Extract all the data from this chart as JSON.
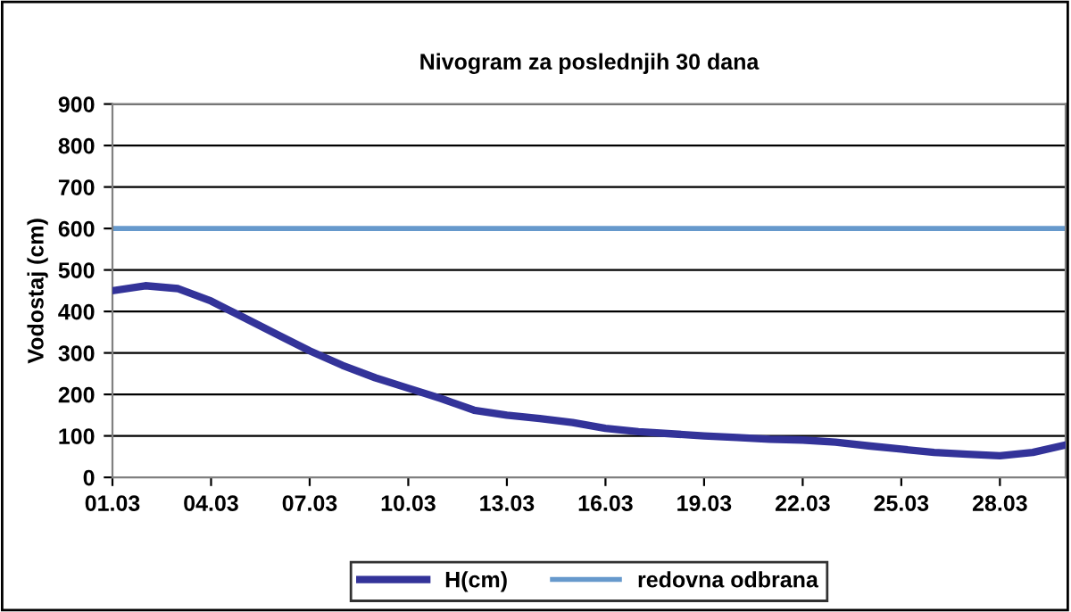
{
  "chart_data": {
    "type": "line",
    "title": "Nivogram za poslednjih 30 dana",
    "ylabel": "Vodostaj (cm)",
    "categories": [
      "01.03",
      null,
      null,
      "04.03",
      null,
      null,
      "07.03",
      null,
      null,
      "10.03",
      null,
      null,
      "13.03",
      null,
      null,
      "16.03",
      null,
      null,
      "19.03",
      null,
      null,
      "22.03",
      null,
      null,
      "25.03",
      null,
      null,
      "28.03",
      null,
      null
    ],
    "series": [
      {
        "name": "H(cm)",
        "color": "#333399",
        "values": [
          450,
          462,
          455,
          425,
          385,
          345,
          305,
          270,
          240,
          215,
          190,
          162,
          150,
          142,
          132,
          118,
          110,
          105,
          100,
          96,
          92,
          90,
          85,
          76,
          68,
          60,
          56,
          52,
          60,
          78
        ]
      }
    ],
    "ref_lines": [
      {
        "axis": "y",
        "value": 600,
        "label": "redovna odbrana",
        "color": "#6699cc"
      }
    ],
    "ylim": [
      0,
      900
    ],
    "yticks": [
      0,
      100,
      200,
      300,
      400,
      500,
      600,
      700,
      800,
      900
    ],
    "grid": "y",
    "legend": "bottom",
    "marker": "none",
    "line_style": "solid"
  }
}
